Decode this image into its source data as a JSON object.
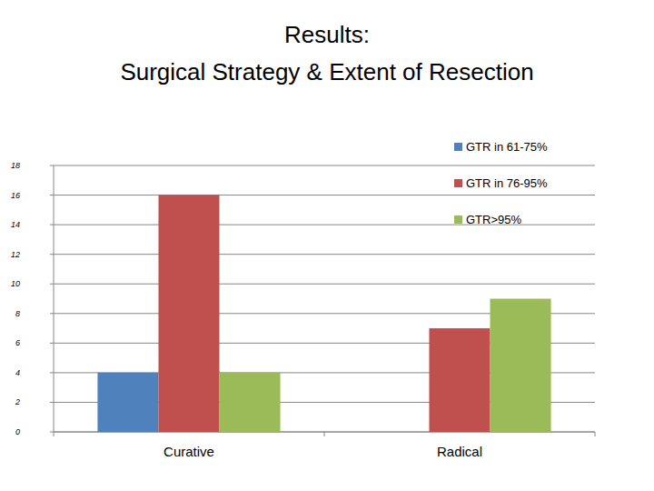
{
  "chart_data": {
    "type": "bar",
    "title": "Results:\nSurgical Strategy & Extent of Resection",
    "categories": [
      "Curative",
      "Radical"
    ],
    "series": [
      {
        "name": "GTR in 61-75%",
        "color": "#4f81bd",
        "values": [
          4,
          0
        ]
      },
      {
        "name": "GTR in 76-95%",
        "color": "#c0504d",
        "values": [
          16,
          7
        ]
      },
      {
        "name": "GTR>95%",
        "color": "#9bbb59",
        "values": [
          4,
          9
        ]
      }
    ],
    "ylim": [
      0,
      18
    ],
    "yticks": [
      0,
      2,
      4,
      6,
      8,
      10,
      12,
      14,
      16,
      18
    ],
    "grid": true,
    "legend": "top-right"
  }
}
